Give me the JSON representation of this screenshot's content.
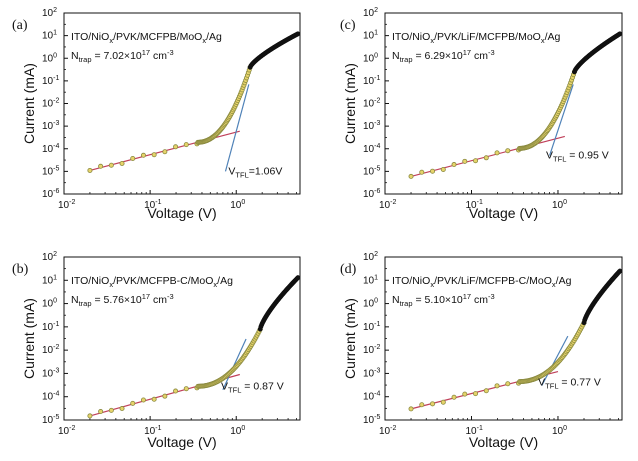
{
  "figure": {
    "id": "iv-trap-density-figure"
  },
  "chart_data": [
    {
      "type": "scatter",
      "panel_label": "(a)",
      "device": {
        "base": "ITO/NiO",
        "sub1": "x",
        "mid": "/PVK/MCFPB/MoO",
        "sub2": "x",
        "tail": "/Ag"
      },
      "ntrap": {
        "prefix": "N",
        "sub": "trap",
        "eq": " = 7.02×10",
        "exp": "17",
        "unit": " cm",
        "unit_exp": "-3"
      },
      "vtfl": {
        "prefix": "V",
        "sub": "TFL",
        "value": "=1.06V"
      },
      "vtfl_volts": 1.06,
      "ohmic_fit": {
        "v_start": 0.02,
        "i_start": 1.1e-05,
        "v_end": 1.1,
        "i_end": 0.0006
      },
      "tfl_fit": {
        "v_start": 0.75,
        "i_start": 1e-05,
        "v_end": 1.4,
        "i_end": 0.07
      },
      "kink": {
        "v": 1.45,
        "i": 0.4
      },
      "sclc_end": {
        "v": 5.2,
        "i": 12
      },
      "ymin_exp": -6,
      "xlabel": "Voltage (V)",
      "ylabel": "Current (mA)",
      "xlim": [
        0.01,
        5.5
      ],
      "xtick_labels": [
        {
          "base": "10",
          "exp": "-2"
        },
        {
          "base": "10",
          "exp": "-1"
        },
        {
          "base": "10",
          "exp": "0"
        }
      ]
    },
    {
      "type": "scatter",
      "panel_label": "(c)",
      "device": {
        "base": "ITO/NiO",
        "sub1": "x",
        "mid": "/PVK/LiF/MCFPB/MoO",
        "sub2": "x",
        "tail": "/Ag"
      },
      "ntrap": {
        "prefix": "N",
        "sub": "trap",
        "eq": " = 6.29×10",
        "exp": "17",
        "unit": " cm",
        "unit_exp": "-3"
      },
      "vtfl": {
        "prefix": "V",
        "sub": "TFL",
        "value": " = 0.95 V"
      },
      "vtfl_volts": 0.95,
      "ohmic_fit": {
        "v_start": 0.02,
        "i_start": 6e-06,
        "v_end": 1.2,
        "i_end": 0.00035
      },
      "tfl_fit": {
        "v_start": 0.8,
        "i_start": 5e-05,
        "v_end": 1.5,
        "i_end": 0.07
      },
      "kink": {
        "v": 1.55,
        "i": 0.25
      },
      "sclc_end": {
        "v": 5.2,
        "i": 12
      },
      "ymin_exp": -6,
      "xlabel": "Voltage (V)",
      "ylabel": "Current (mA)",
      "xlim": [
        0.01,
        5.5
      ],
      "xtick_labels": [
        {
          "base": "10",
          "exp": "-2"
        },
        {
          "base": "10",
          "exp": "-1"
        },
        {
          "base": "10",
          "exp": "0"
        }
      ]
    },
    {
      "type": "scatter",
      "panel_label": "(b)",
      "device": {
        "base": "ITO/NiO",
        "sub1": "x",
        "mid": "/PVK/MCFPB-C/MoO",
        "sub2": "x",
        "tail": "/Ag"
      },
      "ntrap": {
        "prefix": "N",
        "sub": "trap",
        "eq": " = 5.76×10",
        "exp": "17",
        "unit": " cm",
        "unit_exp": "-3"
      },
      "vtfl": {
        "prefix": "V",
        "sub": "TFL",
        "value": " = 0.87 V"
      },
      "vtfl_volts": 0.87,
      "ohmic_fit": {
        "v_start": 0.02,
        "i_start": 1.5e-05,
        "v_end": 1.1,
        "i_end": 0.0009
      },
      "tfl_fit": {
        "v_start": 0.7,
        "i_start": 0.0002,
        "v_end": 1.3,
        "i_end": 0.03
      },
      "kink": {
        "v": 1.9,
        "i": 0.08
      },
      "sclc_end": {
        "v": 5.2,
        "i": 13
      },
      "ymin_exp": -5,
      "xlabel": "Voltage (V)",
      "ylabel": "Current (mA)",
      "xlim": [
        0.01,
        5.5
      ],
      "xtick_labels": [
        {
          "base": "10",
          "exp": "-2"
        },
        {
          "base": "10",
          "exp": "-1"
        },
        {
          "base": "10",
          "exp": "0"
        }
      ]
    },
    {
      "type": "scatter",
      "panel_label": "(d)",
      "device": {
        "base": "ITO/NiO",
        "sub1": "x",
        "mid": "/PVK/LiF/MCFPB-C/MoO",
        "sub2": "x",
        "tail": "/Ag"
      },
      "ntrap": {
        "prefix": "N",
        "sub": "trap",
        "eq": " = 5.10×10",
        "exp": "17",
        "unit": " cm",
        "unit_exp": "-3"
      },
      "vtfl": {
        "prefix": "V",
        "sub": "TFL",
        "value": " = 0.77 V"
      },
      "vtfl_volts": 0.77,
      "ohmic_fit": {
        "v_start": 0.02,
        "i_start": 3e-05,
        "v_end": 1.0,
        "i_end": 0.0012
      },
      "tfl_fit": {
        "v_start": 0.65,
        "i_start": 0.0003,
        "v_end": 1.3,
        "i_end": 0.04
      },
      "kink": {
        "v": 2.0,
        "i": 0.15
      },
      "sclc_end": {
        "v": 5.2,
        "i": 25
      },
      "ymin_exp": -5,
      "xlabel": "Voltage (V)",
      "ylabel": "Current (mA)",
      "xlim": [
        0.01,
        5.5
      ],
      "xtick_labels": [
        {
          "base": "10",
          "exp": "-2"
        },
        {
          "base": "10",
          "exp": "-1"
        },
        {
          "base": "10",
          "exp": "0"
        }
      ]
    }
  ],
  "colors": {
    "data_edge": "#8a8a40",
    "data_fill": "#e6d36a",
    "ohmic_fit": "#c0405a",
    "tfl_fit": "#4f82b8",
    "sclc": "#111111"
  }
}
